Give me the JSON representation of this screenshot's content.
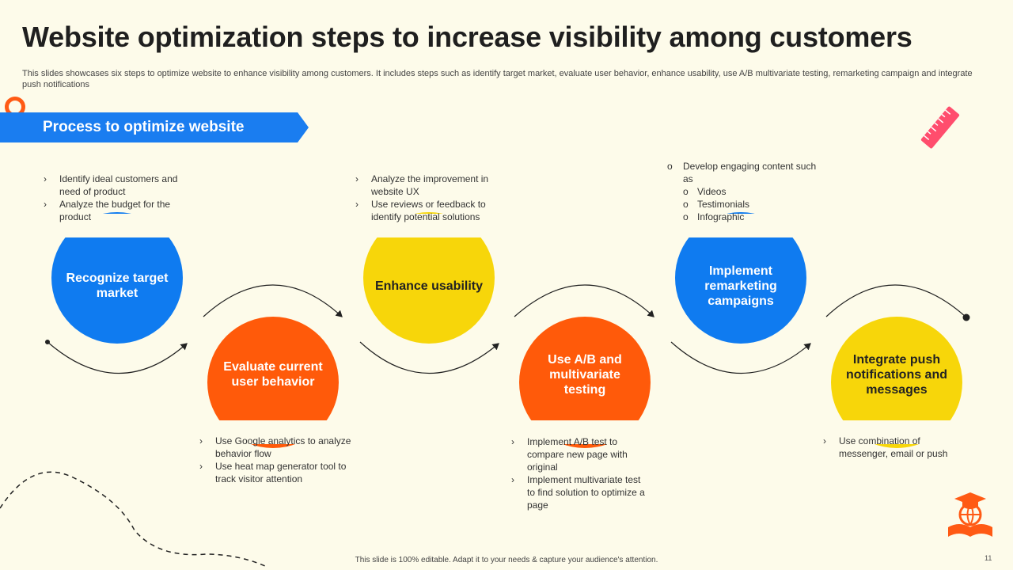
{
  "title": "Website optimization steps to increase visibility among customers",
  "subtitle": "This slides showcases six steps to optimize website to enhance visibility among customers. It includes steps such as identify target market, evaluate user behavior, enhance usability, use A/B  multivariate testing, remarketing campaign and integrate push notifications",
  "banner": "Process to optimize website",
  "steps": [
    {
      "label": "Recognize target market",
      "color": "#0f7bf0"
    },
    {
      "label": "Evaluate current user behavior",
      "color": "#ff5a0a"
    },
    {
      "label": "Enhance usability",
      "color": "#f7d60a"
    },
    {
      "label": "Use A/B and multivariate testing",
      "color": "#ff5a0a"
    },
    {
      "label": "Implement remarketing campaigns",
      "color": "#0f7bf0"
    },
    {
      "label": "Integrate push notifications and messages",
      "color": "#f7d60a"
    }
  ],
  "notes": {
    "step1": [
      "Identify ideal customers and need of product",
      "Analyze the budget for the product"
    ],
    "step2": [
      "Use Google analytics to analyze behavior  flow",
      "Use heat map generator tool to track visitor attention"
    ],
    "step3": [
      "Analyze the improvement in website UX",
      "Use reviews  or feedback to identify potential solutions"
    ],
    "step4": [
      "Implement  A/B test to compare new page with original",
      "Implement  multivariate test to find solution to optimize a page"
    ],
    "step5": {
      "main": "Develop engaging content such as",
      "subs": [
        "Videos",
        "Testimonials",
        "Infographic"
      ]
    },
    "step6": [
      "Use combination of messenger, email or push"
    ]
  },
  "bullet_marks": {
    "arrow": "›",
    "circle": "o"
  },
  "icons": [
    "ring-icon",
    "ruler-icon",
    "book-globe-icon",
    "dashed-curve-decoration"
  ],
  "footer": "This slide is 100% editable.  Adapt it to your needs & capture your audience's attention.",
  "page_number": "11"
}
